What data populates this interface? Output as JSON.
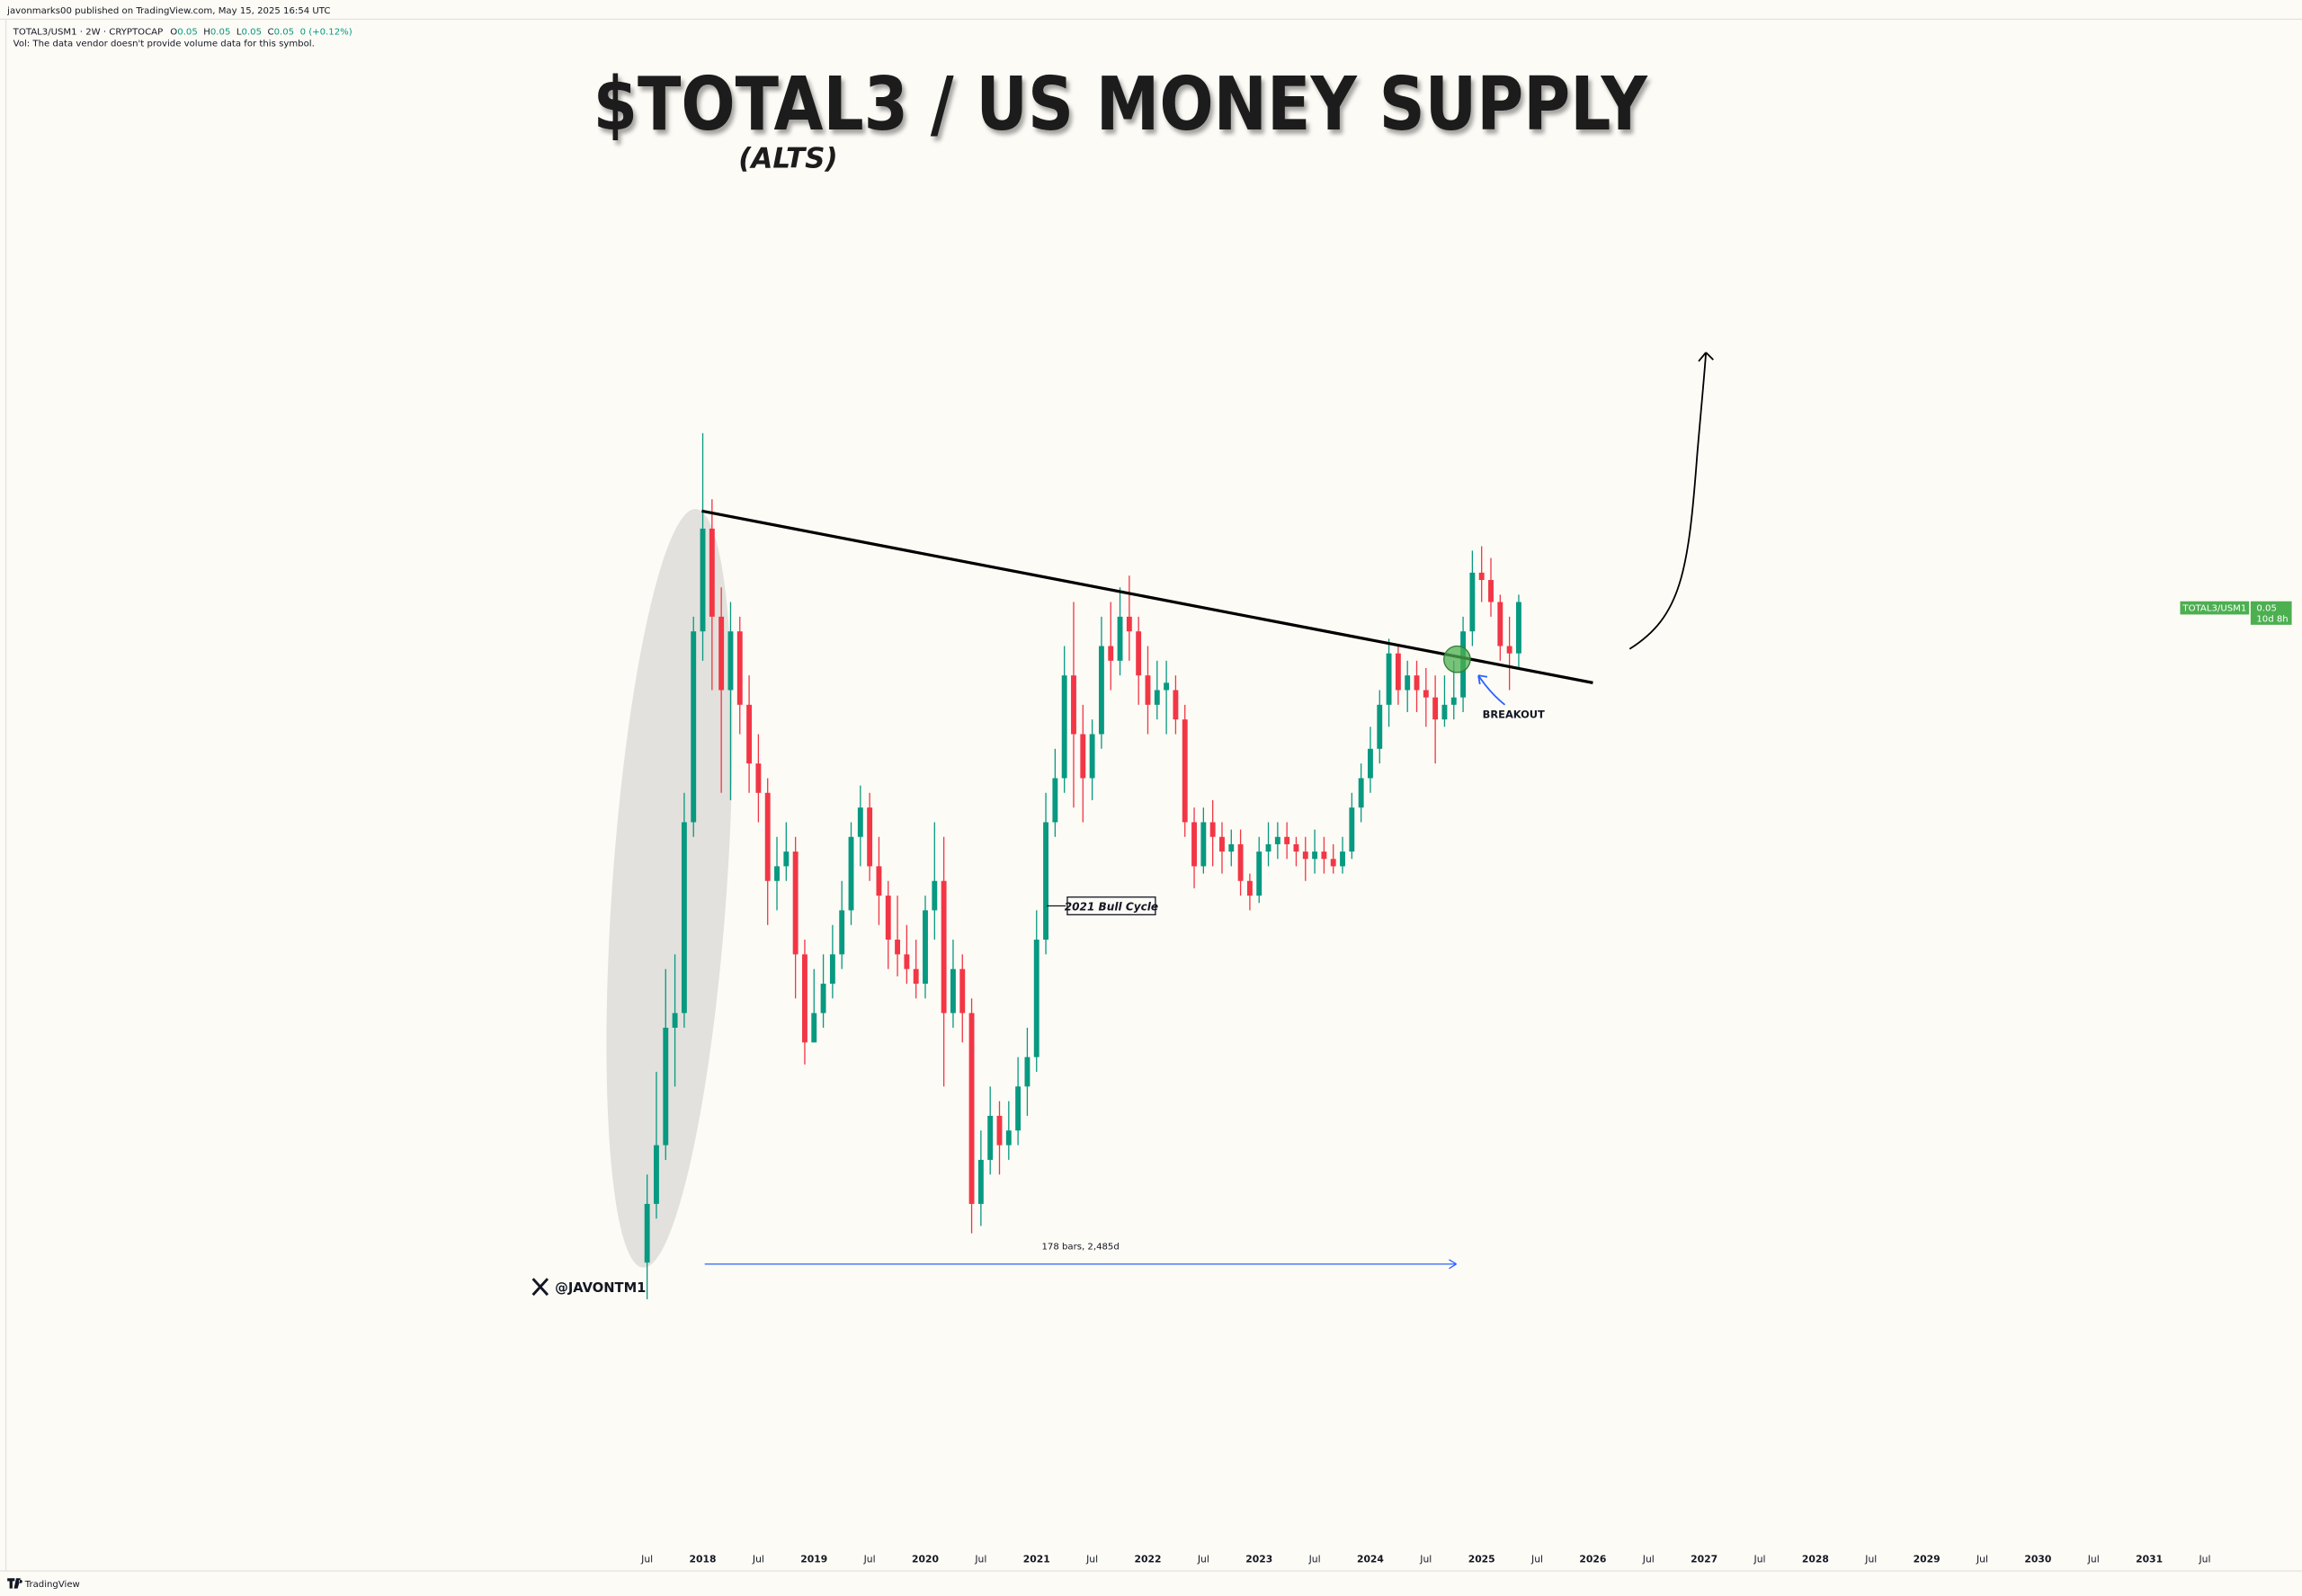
{
  "header": {
    "publisher": "javonmarks00 published on TradingView.com, May 15, 2025 16:54 UTC",
    "legend_title": "TOTAL3/USM1 · 2W · CRYPTOCAP",
    "ohlc_labels": [
      "O",
      "H",
      "L",
      "C"
    ],
    "ohlc": [
      0.05,
      0.05,
      0.05,
      0.05
    ],
    "change": "0 (+0.12%)",
    "volume_note": "Vol: The data vendor doesn't provide volume data for this symbol."
  },
  "footer": {
    "brand": "TradingView"
  },
  "chart_data": {
    "type": "candlestick",
    "title": "$TOTAL3 / US MONEY SUPPLY",
    "subtitle": "(ALTS)",
    "annotations": {
      "bull_cycle": "2021 Bull Cycle",
      "breakout": "BREAKOUT",
      "measure": "178 bars, 2,485d",
      "handle": "@JAVONTM1"
    },
    "price_label": {
      "symbol": "TOTAL3/USM1",
      "value": 0.05,
      "countdown": "10d 8h",
      "color": "#4caf50"
    },
    "colors": {
      "up": "#089981",
      "down": "#f23645"
    },
    "xlim": [
      "2011-10",
      "2032-05"
    ],
    "ylim": [
      0.0182,
      0.06995
    ],
    "xticks": [
      {
        "value": "2017-07",
        "label": "Jul"
      },
      {
        "value": "2018-01",
        "label": "2018"
      },
      {
        "value": "2018-07",
        "label": "Jul"
      },
      {
        "value": "2019-01",
        "label": "2019"
      },
      {
        "value": "2019-07",
        "label": "Jul"
      },
      {
        "value": "2020-01",
        "label": "2020"
      },
      {
        "value": "2020-07",
        "label": "Jul"
      },
      {
        "value": "2021-01",
        "label": "2021"
      },
      {
        "value": "2021-07",
        "label": "Jul"
      },
      {
        "value": "2022-01",
        "label": "2022"
      },
      {
        "value": "2022-07",
        "label": "Jul"
      },
      {
        "value": "2023-01",
        "label": "2023"
      },
      {
        "value": "2023-07",
        "label": "Jul"
      },
      {
        "value": "2024-01",
        "label": "2024"
      },
      {
        "value": "2024-07",
        "label": "Jul"
      },
      {
        "value": "2025-01",
        "label": "2025"
      },
      {
        "value": "2025-07",
        "label": "Jul"
      },
      {
        "value": "2026-01",
        "label": "2026"
      },
      {
        "value": "2026-07",
        "label": "Jul"
      },
      {
        "value": "2027-01",
        "label": "2027"
      },
      {
        "value": "2027-07",
        "label": "Jul"
      },
      {
        "value": "2028-01",
        "label": "2028"
      },
      {
        "value": "2028-07",
        "label": "Jul"
      },
      {
        "value": "2029-01",
        "label": "2029"
      },
      {
        "value": "2029-07",
        "label": "Jul"
      },
      {
        "value": "2030-01",
        "label": "2030"
      },
      {
        "value": "2030-07",
        "label": "Jul"
      },
      {
        "value": "2031-01",
        "label": "2031"
      },
      {
        "value": "2031-07",
        "label": "Jul"
      }
    ],
    "x": [
      "2017-07",
      "2017-08",
      "2017-09",
      "2017-10",
      "2017-11",
      "2017-12",
      "2018-01",
      "2018-02",
      "2018-03",
      "2018-04",
      "2018-05",
      "2018-06",
      "2018-07",
      "2018-08",
      "2018-09",
      "2018-10",
      "2018-11",
      "2018-12",
      "2019-01",
      "2019-02",
      "2019-03",
      "2019-04",
      "2019-05",
      "2019-06",
      "2019-07",
      "2019-08",
      "2019-09",
      "2019-10",
      "2019-11",
      "2019-12",
      "2020-01",
      "2020-02",
      "2020-03",
      "2020-04",
      "2020-05",
      "2020-06",
      "2020-07",
      "2020-08",
      "2020-09",
      "2020-10",
      "2020-11",
      "2020-12",
      "2021-01",
      "2021-02",
      "2021-03",
      "2021-04",
      "2021-05",
      "2021-06",
      "2021-07",
      "2021-08",
      "2021-09",
      "2021-10",
      "2021-11",
      "2021-12",
      "2022-01",
      "2022-02",
      "2022-03",
      "2022-04",
      "2022-05",
      "2022-06",
      "2022-07",
      "2022-08",
      "2022-09",
      "2022-10",
      "2022-11",
      "2022-12",
      "2023-01",
      "2023-02",
      "2023-03",
      "2023-04",
      "2023-05",
      "2023-06",
      "2023-07",
      "2023-08",
      "2023-09",
      "2023-10",
      "2023-11",
      "2023-12",
      "2024-01",
      "2024-02",
      "2024-03",
      "2024-04",
      "2024-05",
      "2024-06",
      "2024-07",
      "2024-08",
      "2024-09",
      "2024-10",
      "2024-11",
      "2024-12",
      "2025-01",
      "2025-02",
      "2025-03",
      "2025-04",
      "2025-05"
    ],
    "open": [
      0.0277,
      0.0297,
      0.0317,
      0.0357,
      0.0362,
      0.0427,
      0.0492,
      0.0527,
      0.0497,
      0.0472,
      0.0492,
      0.0467,
      0.0447,
      0.0437,
      0.0407,
      0.0412,
      0.0417,
      0.0382,
      0.0352,
      0.0362,
      0.0372,
      0.0382,
      0.0397,
      0.0422,
      0.0432,
      0.0412,
      0.0402,
      0.0387,
      0.0382,
      0.0377,
      0.0372,
      0.0397,
      0.0407,
      0.0362,
      0.0377,
      0.0362,
      0.0297,
      0.0312,
      0.0327,
      0.0317,
      0.0322,
      0.0337,
      0.0347,
      0.0387,
      0.0427,
      0.0442,
      0.0477,
      0.0457,
      0.0442,
      0.0457,
      0.0487,
      0.0482,
      0.0497,
      0.0492,
      0.0477,
      0.0467,
      0.0472,
      0.0472,
      0.0462,
      0.0427,
      0.0412,
      0.0427,
      0.0422,
      0.0417,
      0.04195,
      0.0407,
      0.0402,
      0.0417,
      0.04195,
      0.0422,
      0.04195,
      0.0417,
      0.04145,
      0.0417,
      0.04145,
      0.0412,
      0.0417,
      0.0432,
      0.0442,
      0.0452,
      0.0467,
      0.04845,
      0.0472,
      0.0477,
      0.0472,
      0.04695,
      0.0462,
      0.0467,
      0.04695,
      0.0492,
      0.0512,
      0.05095,
      0.0502,
      0.0487,
      0.04845
    ],
    "high": [
      0.0307,
      0.0342,
      0.0377,
      0.0382,
      0.0437,
      0.0497,
      0.05595,
      0.0537,
      0.0507,
      0.0502,
      0.0497,
      0.0477,
      0.0457,
      0.0442,
      0.0422,
      0.0427,
      0.0422,
      0.0387,
      0.0377,
      0.0382,
      0.0392,
      0.0407,
      0.0427,
      0.04395,
      0.0437,
      0.0422,
      0.0407,
      0.0402,
      0.0392,
      0.0387,
      0.0402,
      0.0427,
      0.0422,
      0.0387,
      0.0382,
      0.0367,
      0.0322,
      0.0337,
      0.0332,
      0.0332,
      0.0347,
      0.0357,
      0.0397,
      0.0437,
      0.0452,
      0.0487,
      0.0502,
      0.0467,
      0.0462,
      0.0497,
      0.0502,
      0.0507,
      0.0511,
      0.0497,
      0.0487,
      0.0482,
      0.0482,
      0.0477,
      0.0467,
      0.0432,
      0.0432,
      0.04345,
      0.0427,
      0.04245,
      0.04245,
      0.04095,
      0.0422,
      0.0427,
      0.0427,
      0.0427,
      0.0422,
      0.0422,
      0.04245,
      0.0422,
      0.04195,
      0.0422,
      0.0437,
      0.0447,
      0.04595,
      0.0472,
      0.04895,
      0.0487,
      0.0482,
      0.0482,
      0.04795,
      0.0477,
      0.0477,
      0.0482,
      0.0497,
      0.05195,
      0.0521,
      0.0517,
      0.05045,
      0.0497,
      0.05045
    ],
    "low": [
      0.02645,
      0.0292,
      0.0312,
      0.0337,
      0.0357,
      0.0422,
      0.0482,
      0.0472,
      0.0437,
      0.04345,
      0.0457,
      0.0437,
      0.0427,
      0.0392,
      0.0397,
      0.0407,
      0.0367,
      0.03445,
      0.0352,
      0.0357,
      0.0367,
      0.0377,
      0.0392,
      0.0412,
      0.0407,
      0.0392,
      0.0377,
      0.03745,
      0.0372,
      0.0367,
      0.0367,
      0.0387,
      0.0337,
      0.0357,
      0.0352,
      0.0287,
      0.02895,
      0.0307,
      0.0307,
      0.0312,
      0.0317,
      0.0327,
      0.0342,
      0.0382,
      0.0422,
      0.0437,
      0.0432,
      0.0427,
      0.04345,
      0.0452,
      0.0472,
      0.0477,
      0.0482,
      0.0467,
      0.0457,
      0.0462,
      0.0457,
      0.0457,
      0.0422,
      0.04045,
      0.04095,
      0.0412,
      0.04095,
      0.0412,
      0.0402,
      0.0397,
      0.03995,
      0.0412,
      0.04145,
      0.04145,
      0.0412,
      0.0407,
      0.04095,
      0.04095,
      0.04095,
      0.04095,
      0.04145,
      0.0427,
      0.0437,
      0.0447,
      0.04595,
      0.0467,
      0.04645,
      0.04645,
      0.04595,
      0.0447,
      0.04595,
      0.0462,
      0.04645,
      0.0487,
      0.0502,
      0.0497,
      0.0482,
      0.0472,
      0.04795
    ],
    "close": [
      0.0297,
      0.0317,
      0.0357,
      0.0362,
      0.0427,
      0.0492,
      0.0527,
      0.0497,
      0.0472,
      0.0492,
      0.0467,
      0.0447,
      0.0437,
      0.0407,
      0.0412,
      0.0417,
      0.0382,
      0.0352,
      0.0362,
      0.0372,
      0.0382,
      0.0397,
      0.0422,
      0.0432,
      0.0412,
      0.0402,
      0.0387,
      0.0382,
      0.0377,
      0.0372,
      0.0397,
      0.0407,
      0.0362,
      0.0377,
      0.0362,
      0.0297,
      0.0312,
      0.0327,
      0.0317,
      0.0322,
      0.0337,
      0.0347,
      0.0387,
      0.0427,
      0.0442,
      0.0477,
      0.0457,
      0.0442,
      0.0457,
      0.0487,
      0.0482,
      0.0497,
      0.0492,
      0.0477,
      0.0467,
      0.0472,
      0.04745,
      0.0462,
      0.0427,
      0.0412,
      0.0427,
      0.0422,
      0.0417,
      0.04195,
      0.0407,
      0.0402,
      0.0417,
      0.04195,
      0.0422,
      0.04195,
      0.0417,
      0.04145,
      0.0417,
      0.04145,
      0.0412,
      0.0417,
      0.0432,
      0.0442,
      0.0452,
      0.0467,
      0.04845,
      0.0472,
      0.0477,
      0.0472,
      0.04695,
      0.0462,
      0.0467,
      0.04695,
      0.0492,
      0.0512,
      0.05095,
      0.0502,
      0.0487,
      0.04845,
      0.0502
    ]
  }
}
